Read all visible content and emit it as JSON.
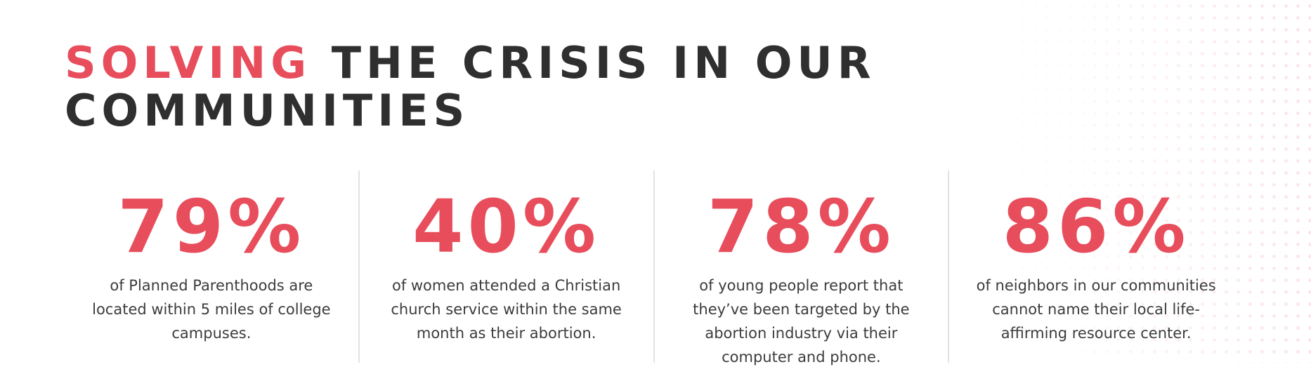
{
  "headline": {
    "accent": "SOLVING",
    "line1_rest": " THE CRISIS IN OUR",
    "line2": "COMMUNITIES"
  },
  "stats": [
    {
      "value": "79%",
      "caption": "of Planned Parenthoods are located within 5 miles of college campuses."
    },
    {
      "value": "40%",
      "caption": "of women attended a Christian church service within the same month as their abortion."
    },
    {
      "value": "78%",
      "caption": "of young people report that they’ve been targeted by the abortion industry via their computer and phone."
    },
    {
      "value": "86%",
      "caption": "of neighbors in our communities cannot name  their local life-affirming resource center."
    }
  ],
  "colors": {
    "accent": "#e84d5c",
    "heading": "#2f2f2f",
    "body_text": "#3c3c3c",
    "divider": "#e2e2e2"
  },
  "decoration": "dot-pattern"
}
